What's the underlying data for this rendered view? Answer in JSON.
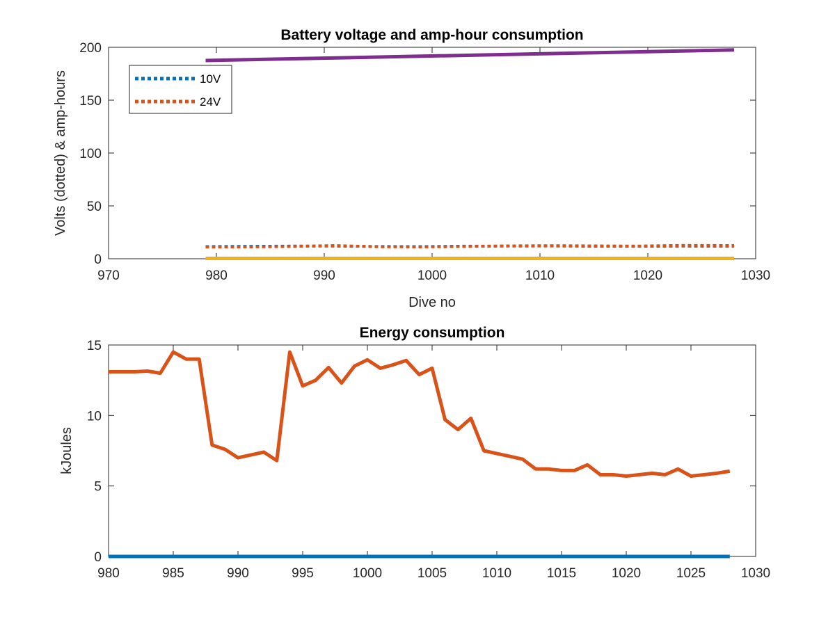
{
  "chart_data": [
    {
      "type": "line",
      "title": "Battery voltage and amp-hour consumption",
      "xlabel": "Dive no",
      "ylabel": "Volts (dotted) & amp-hours",
      "xlim": [
        970,
        1030
      ],
      "ylim": [
        0,
        200
      ],
      "xticks": [
        970,
        980,
        990,
        1000,
        1010,
        1020,
        1030
      ],
      "yticks": [
        0,
        50,
        100,
        150,
        200
      ],
      "grid": false,
      "legend": {
        "position": "top-left",
        "entries": [
          "10V",
          "24V"
        ]
      },
      "series": [
        {
          "name": "10V",
          "style": "dotted",
          "color": "#0072BD",
          "x": [
            979,
            983,
            987,
            991,
            995,
            999,
            1003,
            1007,
            1011,
            1015,
            1019,
            1023,
            1028
          ],
          "y": [
            11.5,
            11.8,
            12.0,
            12.0,
            11.6,
            11.5,
            11.9,
            12.0,
            12.1,
            11.8,
            11.7,
            12.0,
            11.9
          ]
        },
        {
          "name": "24V",
          "style": "dotted",
          "color": "#D95319",
          "x": [
            979,
            983,
            987,
            991,
            995,
            999,
            1003,
            1007,
            1011,
            1015,
            1019,
            1023,
            1028
          ],
          "y": [
            11.0,
            11.2,
            11.6,
            12.5,
            11.3,
            11.2,
            11.6,
            12.2,
            12.4,
            12.2,
            12.0,
            12.6,
            12.5
          ]
        },
        {
          "style": "solid",
          "color": "#EDB120",
          "x": [
            979,
            1028
          ],
          "y": [
            0.3,
            0.3
          ]
        },
        {
          "style": "solid",
          "color": "#7E2F8E",
          "x": [
            979,
            1028
          ],
          "y": [
            187.5,
            197.5
          ]
        }
      ]
    },
    {
      "type": "line",
      "title": "Energy consumption",
      "xlabel": "",
      "ylabel": "kJoules",
      "xlim": [
        980,
        1030
      ],
      "ylim": [
        0,
        15
      ],
      "xticks": [
        980,
        985,
        990,
        995,
        1000,
        1005,
        1010,
        1015,
        1020,
        1025,
        1030
      ],
      "yticks": [
        0,
        5,
        10,
        15
      ],
      "grid": false,
      "series": [
        {
          "style": "solid",
          "color": "#D95319",
          "x": [
            980,
            981,
            982,
            983,
            984,
            985,
            986,
            987,
            988,
            989,
            990,
            991,
            992,
            993,
            994,
            995,
            996,
            997,
            998,
            999,
            1000,
            1001,
            1002,
            1003,
            1004,
            1005,
            1006,
            1007,
            1008,
            1009,
            1010,
            1011,
            1012,
            1013,
            1014,
            1015,
            1016,
            1017,
            1018,
            1019,
            1020,
            1021,
            1022,
            1023,
            1024,
            1025,
            1026,
            1027,
            1028
          ],
          "y": [
            13.1,
            13.1,
            13.1,
            13.15,
            13.0,
            14.5,
            14.0,
            14.0,
            7.9,
            7.6,
            7.0,
            7.2,
            7.4,
            6.8,
            14.5,
            12.1,
            12.5,
            13.4,
            12.3,
            13.5,
            13.95,
            13.35,
            13.6,
            13.9,
            12.9,
            13.35,
            9.7,
            9.0,
            9.8,
            7.5,
            7.3,
            7.1,
            6.9,
            6.2,
            6.2,
            6.1,
            6.1,
            6.5,
            5.8,
            5.8,
            5.7,
            5.8,
            5.9,
            5.8,
            6.2,
            5.7,
            5.8,
            5.9,
            6.05
          ]
        },
        {
          "style": "solid",
          "color": "#0072BD",
          "x": [
            980,
            1028
          ],
          "y": [
            0,
            0
          ]
        }
      ]
    }
  ]
}
